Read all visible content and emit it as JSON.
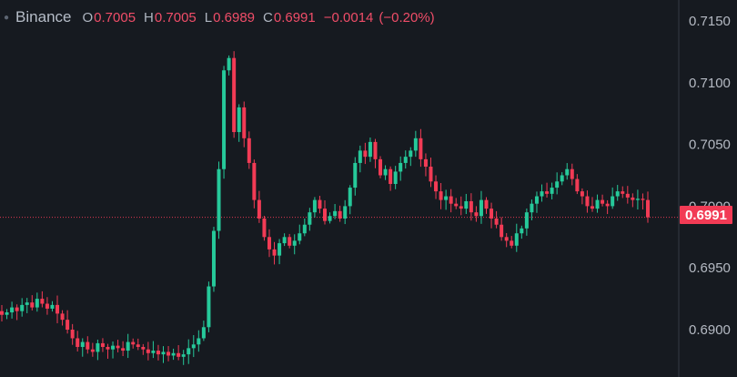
{
  "legend": {
    "symbol": "Binance",
    "open_label": "O",
    "open": "0.7005",
    "high_label": "H",
    "high": "0.7005",
    "low_label": "L",
    "low": "0.6989",
    "close_label": "C",
    "close": "0.6991",
    "change": "−0.0014",
    "change_pct": "(−0.20%)"
  },
  "last_price_tag": "0.6991",
  "colors": {
    "background": "#161a20",
    "up": "#26c99a",
    "down": "#f23b55",
    "axis_text": "#b5bac3",
    "axis_line": "#343a44"
  },
  "chart_data": {
    "type": "candlestick",
    "y_ticks": [
      "0.7150",
      "0.7100",
      "0.7050",
      "0.7000",
      "0.6950",
      "0.6900"
    ],
    "ylim": [
      0.6875,
      0.7155
    ],
    "last_price": 0.6991,
    "grid": false,
    "close_series": [
      0.6912,
      0.6914,
      0.6918,
      0.6915,
      0.692,
      0.6922,
      0.6918,
      0.6925,
      0.6921,
      0.6917,
      0.692,
      0.6913,
      0.6908,
      0.69,
      0.6893,
      0.6886,
      0.689,
      0.6884,
      0.6882,
      0.6889,
      0.6886,
      0.6884,
      0.6887,
      0.6885,
      0.6883,
      0.689,
      0.6888,
      0.6886,
      0.6884,
      0.6881,
      0.6883,
      0.688,
      0.6882,
      0.6879,
      0.6881,
      0.6878,
      0.688,
      0.6885,
      0.6888,
      0.6893,
      0.6902,
      0.6935,
      0.698,
      0.703,
      0.711,
      0.712,
      0.706,
      0.708,
      0.7055,
      0.7035,
      0.7005,
      0.699,
      0.6975,
      0.6965,
      0.696,
      0.697,
      0.6975,
      0.6968,
      0.6972,
      0.6978,
      0.6985,
      0.6995,
      0.7005,
      0.6998,
      0.6988,
      0.6992,
      0.6996,
      0.699,
      0.7,
      0.7015,
      0.7035,
      0.7045,
      0.704,
      0.7052,
      0.7038,
      0.7025,
      0.703,
      0.7018,
      0.7028,
      0.7035,
      0.704,
      0.7045,
      0.7055,
      0.7038,
      0.7032,
      0.702,
      0.7012,
      0.7005,
      0.7008,
      0.7002,
      0.7,
      0.6998,
      0.7004,
      0.6995,
      0.6992,
      0.7005,
      0.6998,
      0.699,
      0.6985,
      0.6975,
      0.6972,
      0.6968,
      0.6978,
      0.6982,
      0.6995,
      0.7002,
      0.7008,
      0.7012,
      0.701,
      0.7015,
      0.702,
      0.7025,
      0.703,
      0.7022,
      0.7012,
      0.7008,
      0.7,
      0.6998,
      0.7005,
      0.7002,
      0.7,
      0.7008,
      0.7012,
      0.701,
      0.7007,
      0.7005,
      0.7006,
      0.7005,
      0.6991
    ]
  }
}
